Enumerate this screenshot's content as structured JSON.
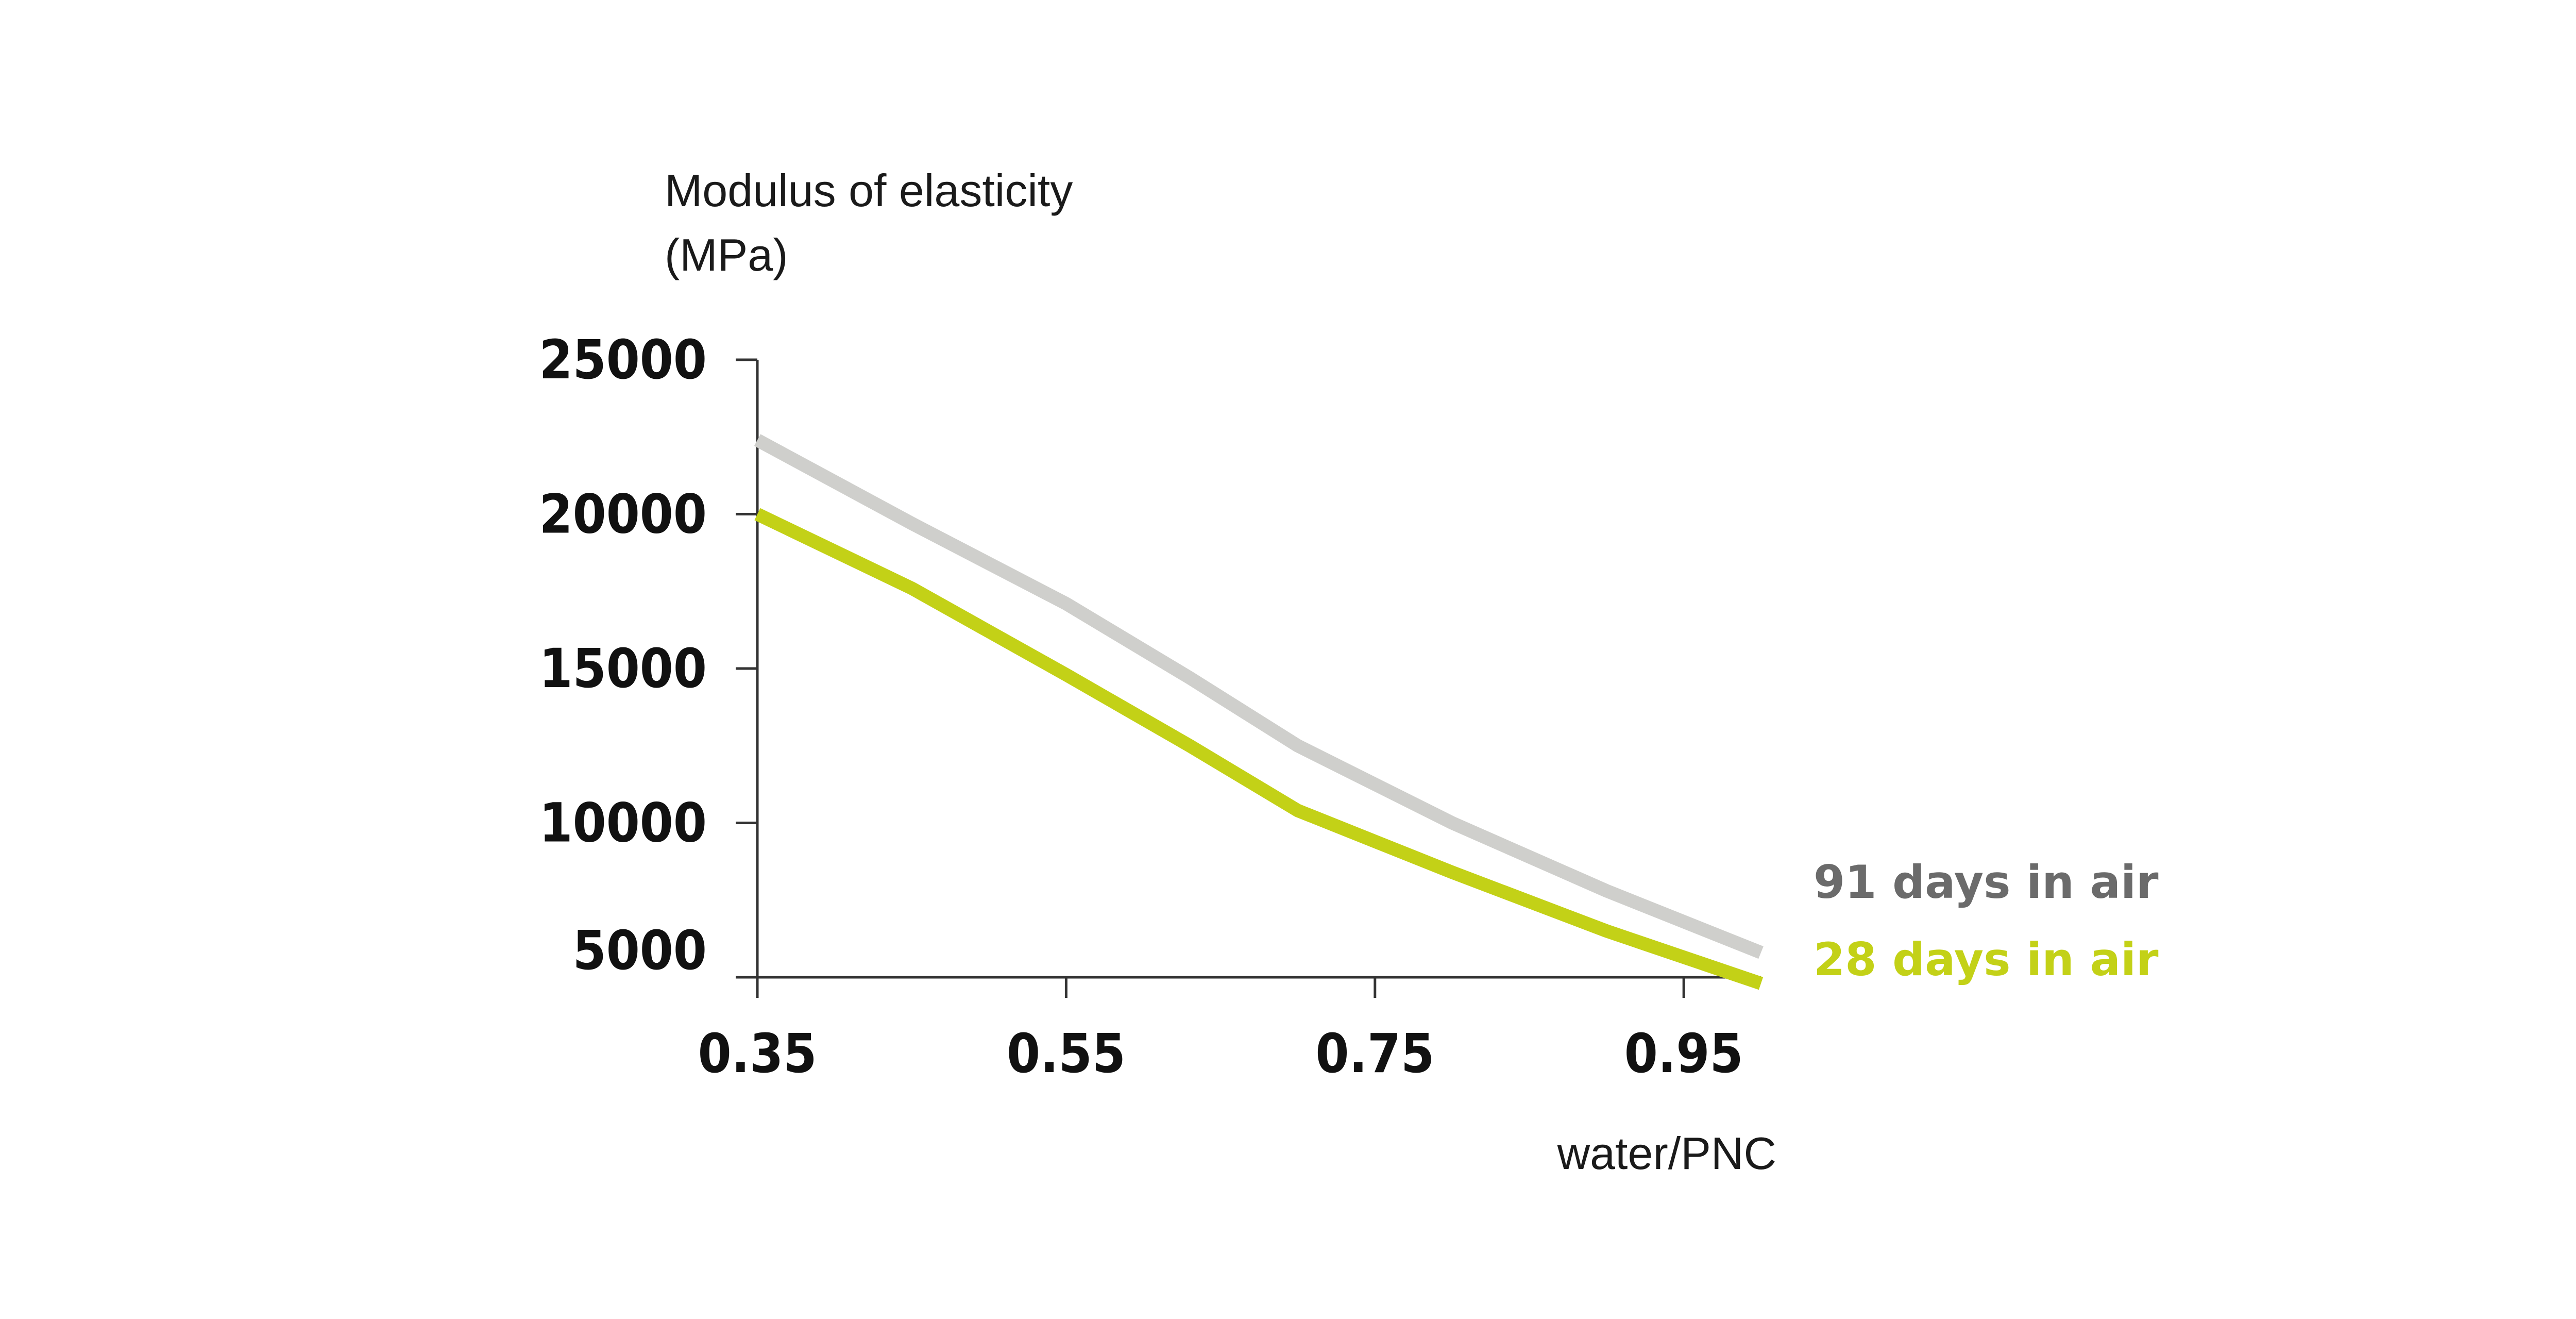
{
  "chart_data": {
    "type": "line",
    "title": "",
    "ylabel_lines": [
      "Modulus of elasticity",
      "(MPa)"
    ],
    "xlabel": "water/PNC",
    "xlim": [
      0.35,
      1.01
    ],
    "ylim": [
      5000,
      25000
    ],
    "x_ticks": [
      0.35,
      0.55,
      0.75,
      0.95
    ],
    "x_tick_labels": [
      "0.35",
      "0.55",
      "0.75",
      "0.95"
    ],
    "y_ticks": [
      5000,
      10000,
      15000,
      20000,
      25000
    ],
    "y_tick_labels": [
      "5000",
      "10000",
      "15000",
      "20000",
      "25000"
    ],
    "grid": false,
    "legend_position": "right",
    "series": [
      {
        "name": "91 days in air",
        "color": "#cfcfcc",
        "label_color": "#6b6b6b",
        "x": [
          0.35,
          0.45,
          0.55,
          0.63,
          0.7,
          0.8,
          0.9,
          1.0
        ],
        "y": [
          22400,
          19700,
          17100,
          14700,
          12500,
          10000,
          7800,
          5800
        ]
      },
      {
        "name": "28 days in air",
        "color": "#c3d117",
        "label_color": "#c3d117",
        "x": [
          0.35,
          0.45,
          0.55,
          0.63,
          0.7,
          0.8,
          0.9,
          1.0
        ],
        "y": [
          20000,
          17600,
          14800,
          12500,
          10400,
          8400,
          6500,
          4800
        ]
      }
    ]
  }
}
